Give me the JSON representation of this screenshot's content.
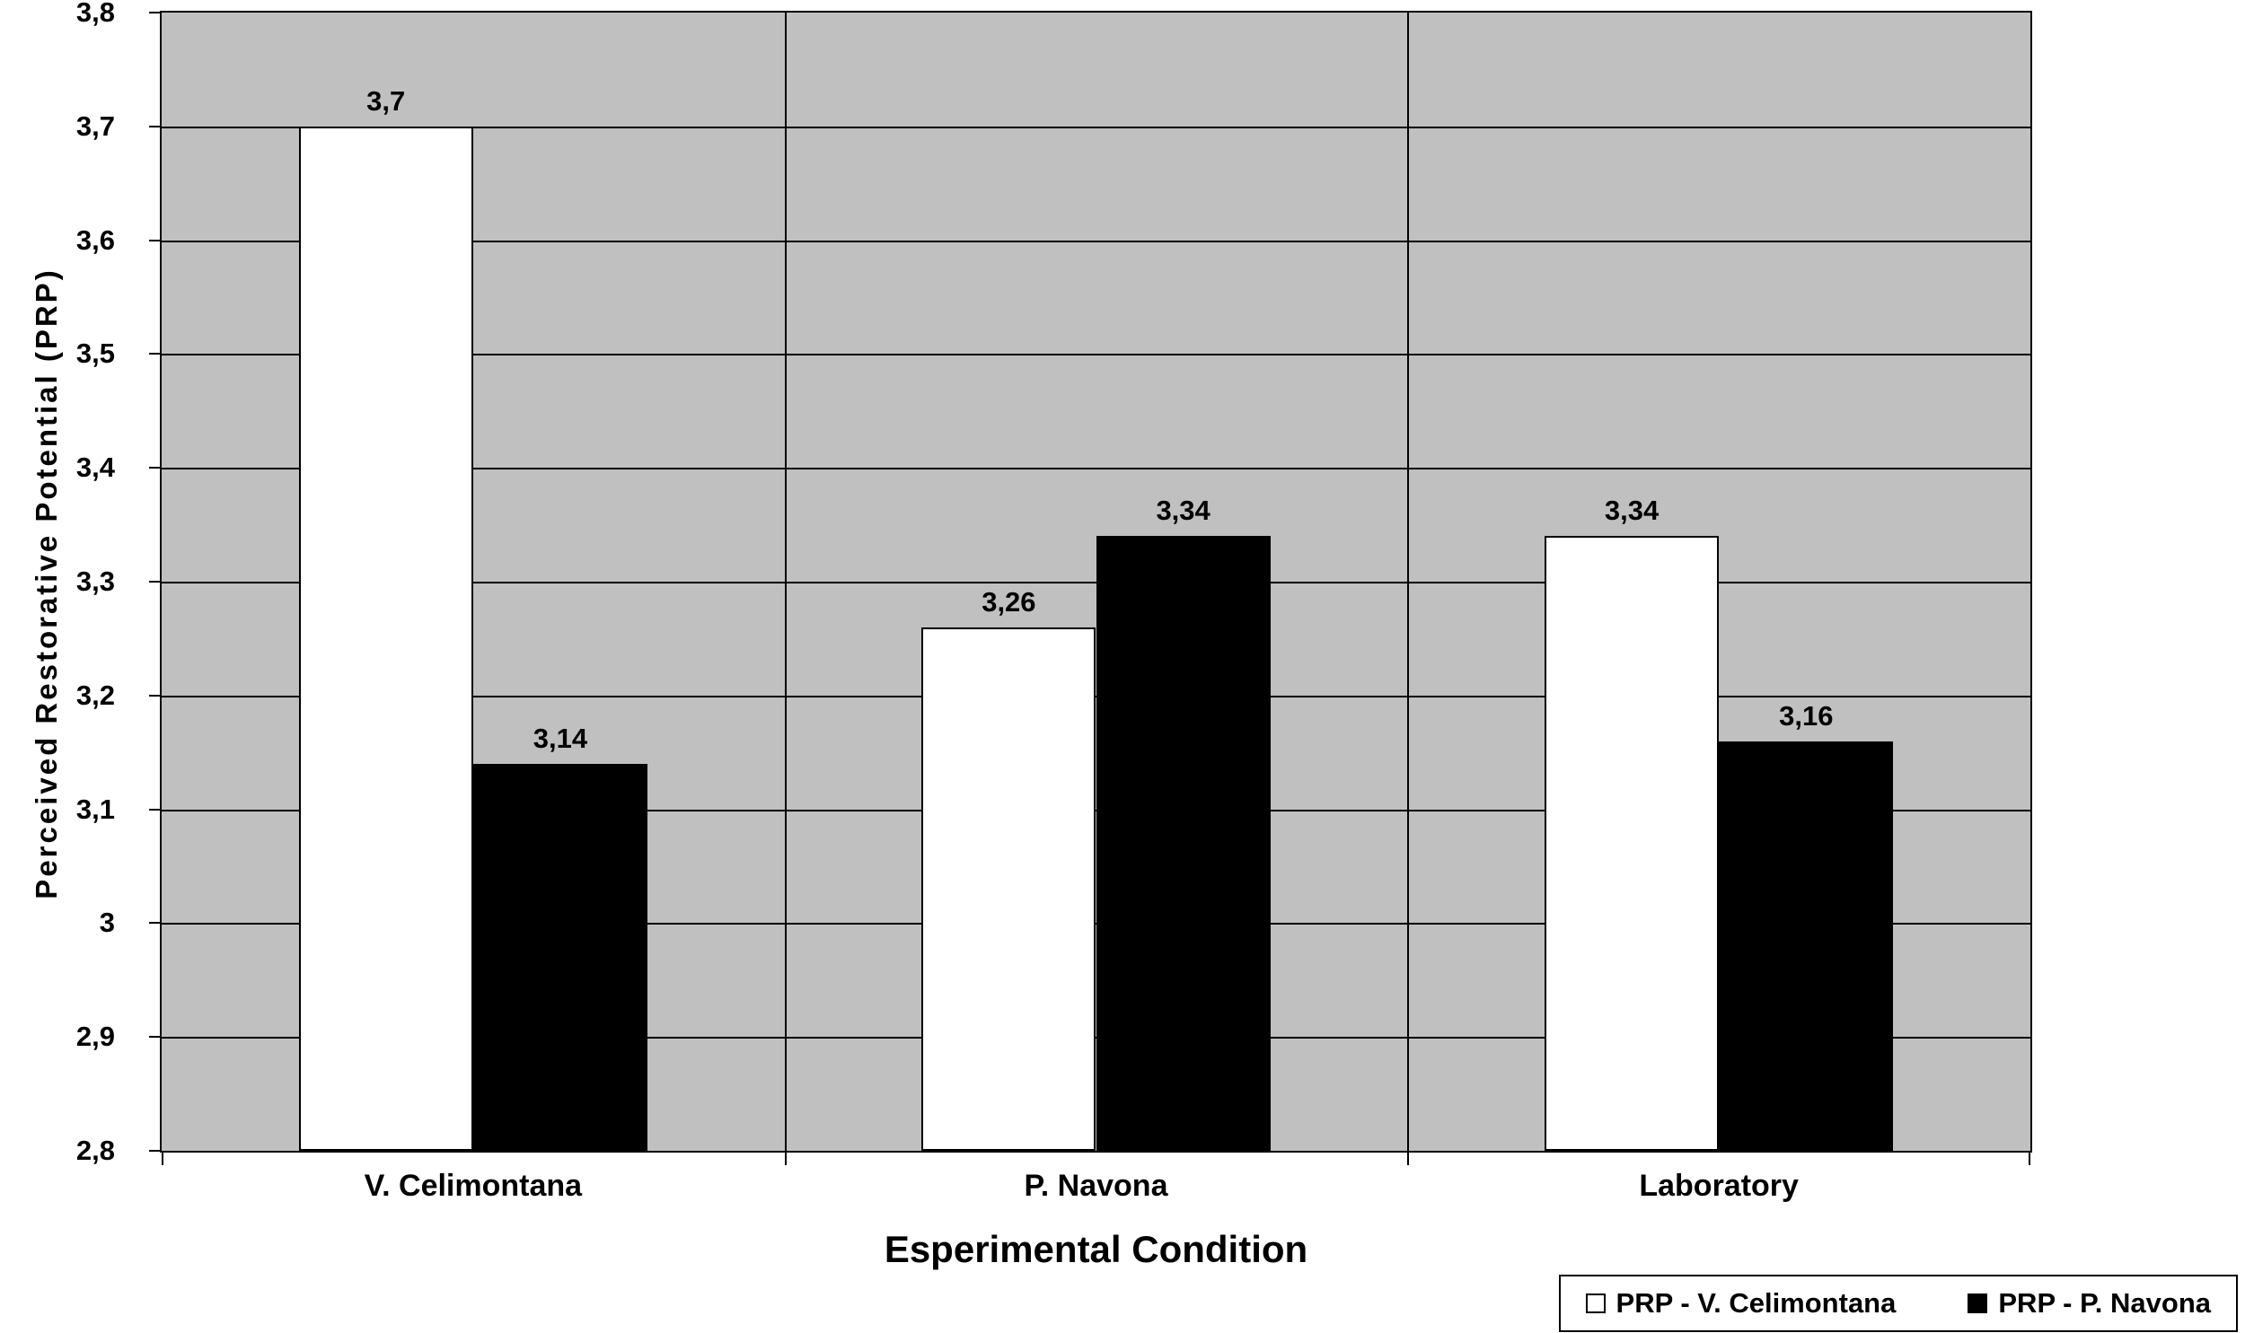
{
  "chart_data": {
    "type": "bar",
    "title": "",
    "categories": [
      "V. Celimontana",
      "P. Navona",
      "Laboratory"
    ],
    "series": [
      {
        "name": "PRP - V. Celimontana",
        "color": "#ffffff",
        "values": [
          3.7,
          3.26,
          3.34
        ],
        "labels": [
          "3,7",
          "3,26",
          "3,34"
        ]
      },
      {
        "name": "PRP - P. Navona",
        "color": "#000000",
        "values": [
          3.14,
          3.34,
          3.16
        ],
        "labels": [
          "3,14",
          "3,34",
          "3,16"
        ]
      }
    ],
    "xlabel": "Esperimental Condition",
    "ylabel": "Perceived Restorative Potential (PRP)",
    "ylim": [
      2.8,
      3.8
    ],
    "ytick_step": 0.1,
    "ytick_labels": [
      "2,8",
      "2,9",
      "3",
      "3,1",
      "3,2",
      "3,3",
      "3,4",
      "3,5",
      "3,6",
      "3,7",
      "3,8"
    ],
    "grid": true,
    "plot_bg": "#c0c0c0",
    "legend_position": "bottom-right"
  }
}
